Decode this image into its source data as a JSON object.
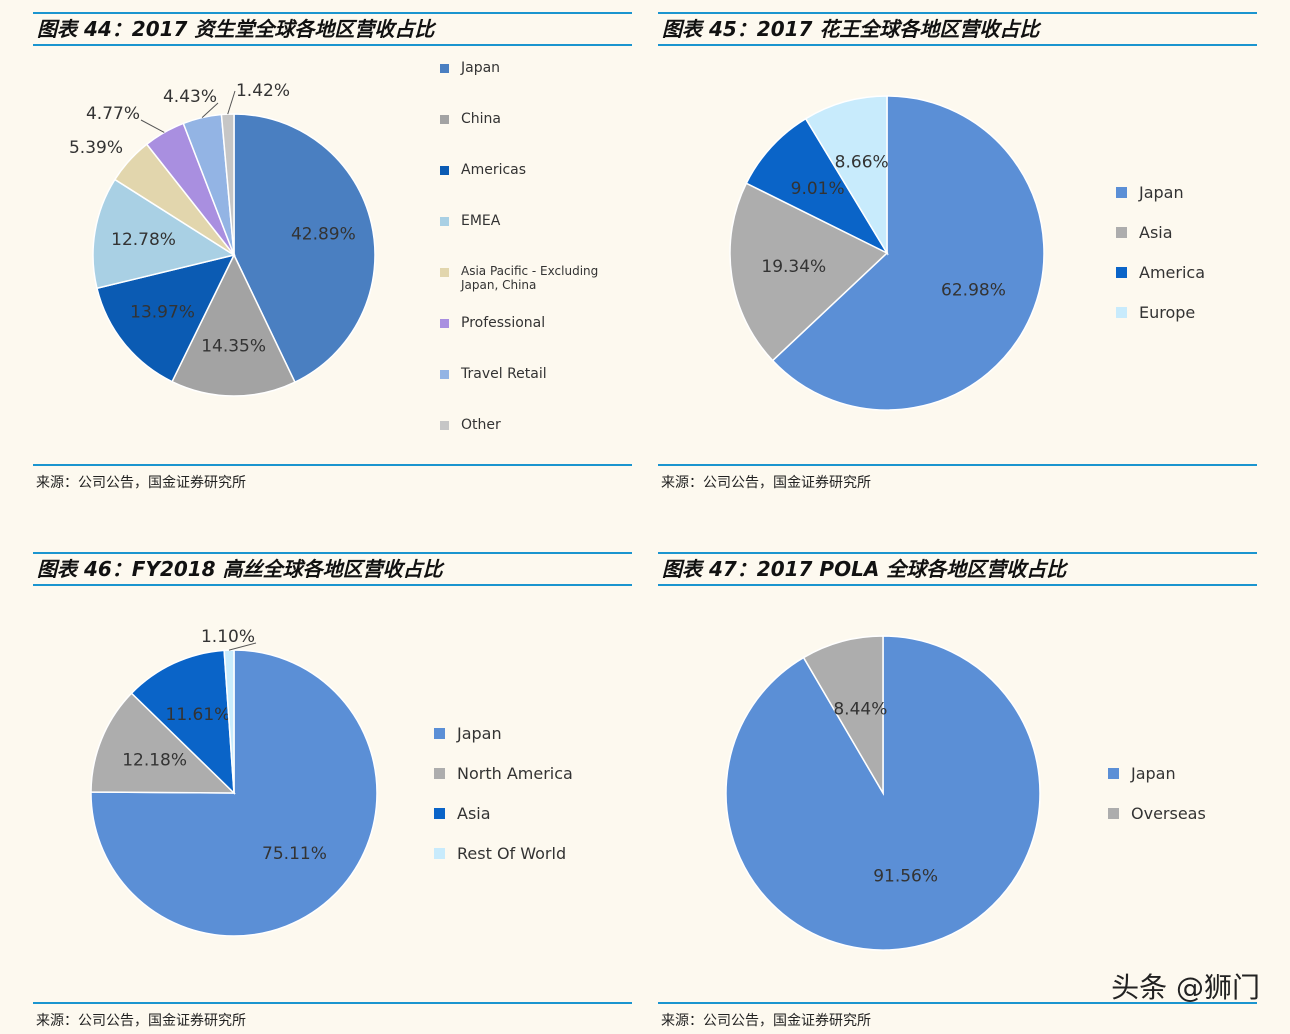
{
  "source_text": "来源：公司公告，国金证券研究所",
  "watermark": "头条 @狮门",
  "chart_data": [
    {
      "type": "pie",
      "title": "图表 44：2017 资生堂全球各地区营收占比",
      "categories": [
        "Japan",
        "China",
        "Americas",
        "EMEA",
        "Asia Pacific - Excluding Japan, China",
        "Professional",
        "Travel Retail",
        "Other"
      ],
      "values": [
        42.89,
        14.35,
        13.97,
        12.78,
        5.39,
        4.77,
        4.43,
        1.42
      ],
      "labels": [
        "42.89%",
        "14.35%",
        "13.97%",
        "12.78%",
        "5.39%",
        "4.77%",
        "4.43%",
        "1.42%"
      ],
      "colors": [
        "#4a7fc1",
        "#a3a3a3",
        "#0b5bb3",
        "#a9d0e4",
        "#e2d6ad",
        "#a98fe0",
        "#93b4e4",
        "#c6c6c6"
      ],
      "legend": "right"
    },
    {
      "type": "pie",
      "title": "图表 45：2017 花王全球各地区营收占比",
      "categories": [
        "Japan",
        "Asia",
        "America",
        "Europe"
      ],
      "values": [
        62.98,
        19.34,
        9.01,
        8.66
      ],
      "labels": [
        "62.98%",
        "19.34%",
        "9.01%",
        "8.66%"
      ],
      "colors": [
        "#5b8fd6",
        "#adadad",
        "#0a64c8",
        "#c8ebfc"
      ],
      "legend": "right"
    },
    {
      "type": "pie",
      "title": "图表 46：FY2018 高丝全球各地区营收占比",
      "categories": [
        "Japan",
        "North America",
        "Asia",
        "Rest Of World"
      ],
      "values": [
        75.11,
        12.18,
        11.61,
        1.1
      ],
      "labels": [
        "75.11%",
        "12.18%",
        "11.61%",
        "1.10%"
      ],
      "colors": [
        "#5b8fd6",
        "#adadad",
        "#0a64c8",
        "#c8ebfc"
      ],
      "legend": "right"
    },
    {
      "type": "pie",
      "title": "图表 47：2017 POLA 全球各地区营收占比",
      "categories": [
        "Japan",
        "Overseas"
      ],
      "values": [
        91.56,
        8.44
      ],
      "labels": [
        "91.56%",
        "8.44%"
      ],
      "colors": [
        "#5b8fd6",
        "#adadad"
      ],
      "legend": "right"
    }
  ]
}
